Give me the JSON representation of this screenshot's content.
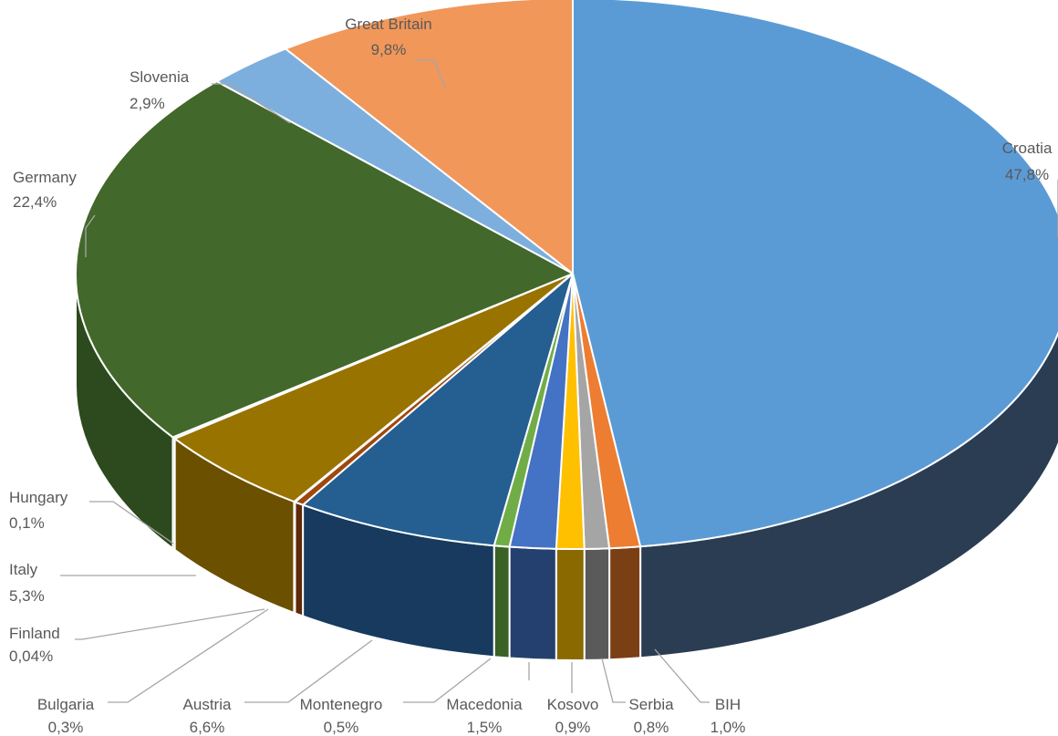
{
  "chart_data": {
    "type": "pie",
    "style": "3d",
    "title": "",
    "legend": "none",
    "slices": [
      {
        "label": "Croatia",
        "value": 47.8,
        "value_text": "47,8%",
        "color": "#5b9bd5",
        "side_color": "#2a3d52"
      },
      {
        "label": "BIH",
        "value": 1.0,
        "value_text": "1,0%",
        "color": "#ed7d31",
        "side_color": "#7b3f14"
      },
      {
        "label": "Serbia",
        "value": 0.8,
        "value_text": "0,8%",
        "color": "#a5a5a5",
        "side_color": "#5a5a5a"
      },
      {
        "label": "Kosovo",
        "value": 0.9,
        "value_text": "0,9%",
        "color": "#ffc000",
        "side_color": "#8a6a00"
      },
      {
        "label": "Macedonia",
        "value": 1.5,
        "value_text": "1,5%",
        "color": "#4472c4",
        "side_color": "#24406e"
      },
      {
        "label": "Montenegro",
        "value": 0.5,
        "value_text": "0,5%",
        "color": "#70ad47",
        "side_color": "#3a6126"
      },
      {
        "label": "Austria",
        "value": 6.6,
        "value_text": "6,6%",
        "color": "#255e91",
        "side_color": "#173a5e"
      },
      {
        "label": "Bulgaria",
        "value": 0.3,
        "value_text": "0,3%",
        "color": "#9e480e",
        "side_color": "#5e2a08"
      },
      {
        "label": "Finland",
        "value": 0.04,
        "value_text": "0,04%",
        "color": "#636363",
        "side_color": "#3a3a3a"
      },
      {
        "label": "Italy",
        "value": 5.3,
        "value_text": "5,3%",
        "color": "#997300",
        "side_color": "#6b5000"
      },
      {
        "label": "Hungary",
        "value": 0.1,
        "value_text": "0,1%",
        "color": "#264478",
        "side_color": "#172a4a"
      },
      {
        "label": "Germany",
        "value": 22.4,
        "value_text": "22,4%",
        "color": "#43682b",
        "side_color": "#2c4a1d"
      },
      {
        "label": "Slovenia",
        "value": 2.9,
        "value_text": "2,9%",
        "color": "#7cafdd",
        "side_color": "#4a6e8e"
      },
      {
        "label": "Great Britain",
        "value": 9.8,
        "value_text": "9,8%",
        "color": "#f1975a",
        "side_color": "#9a5a30"
      }
    ]
  }
}
